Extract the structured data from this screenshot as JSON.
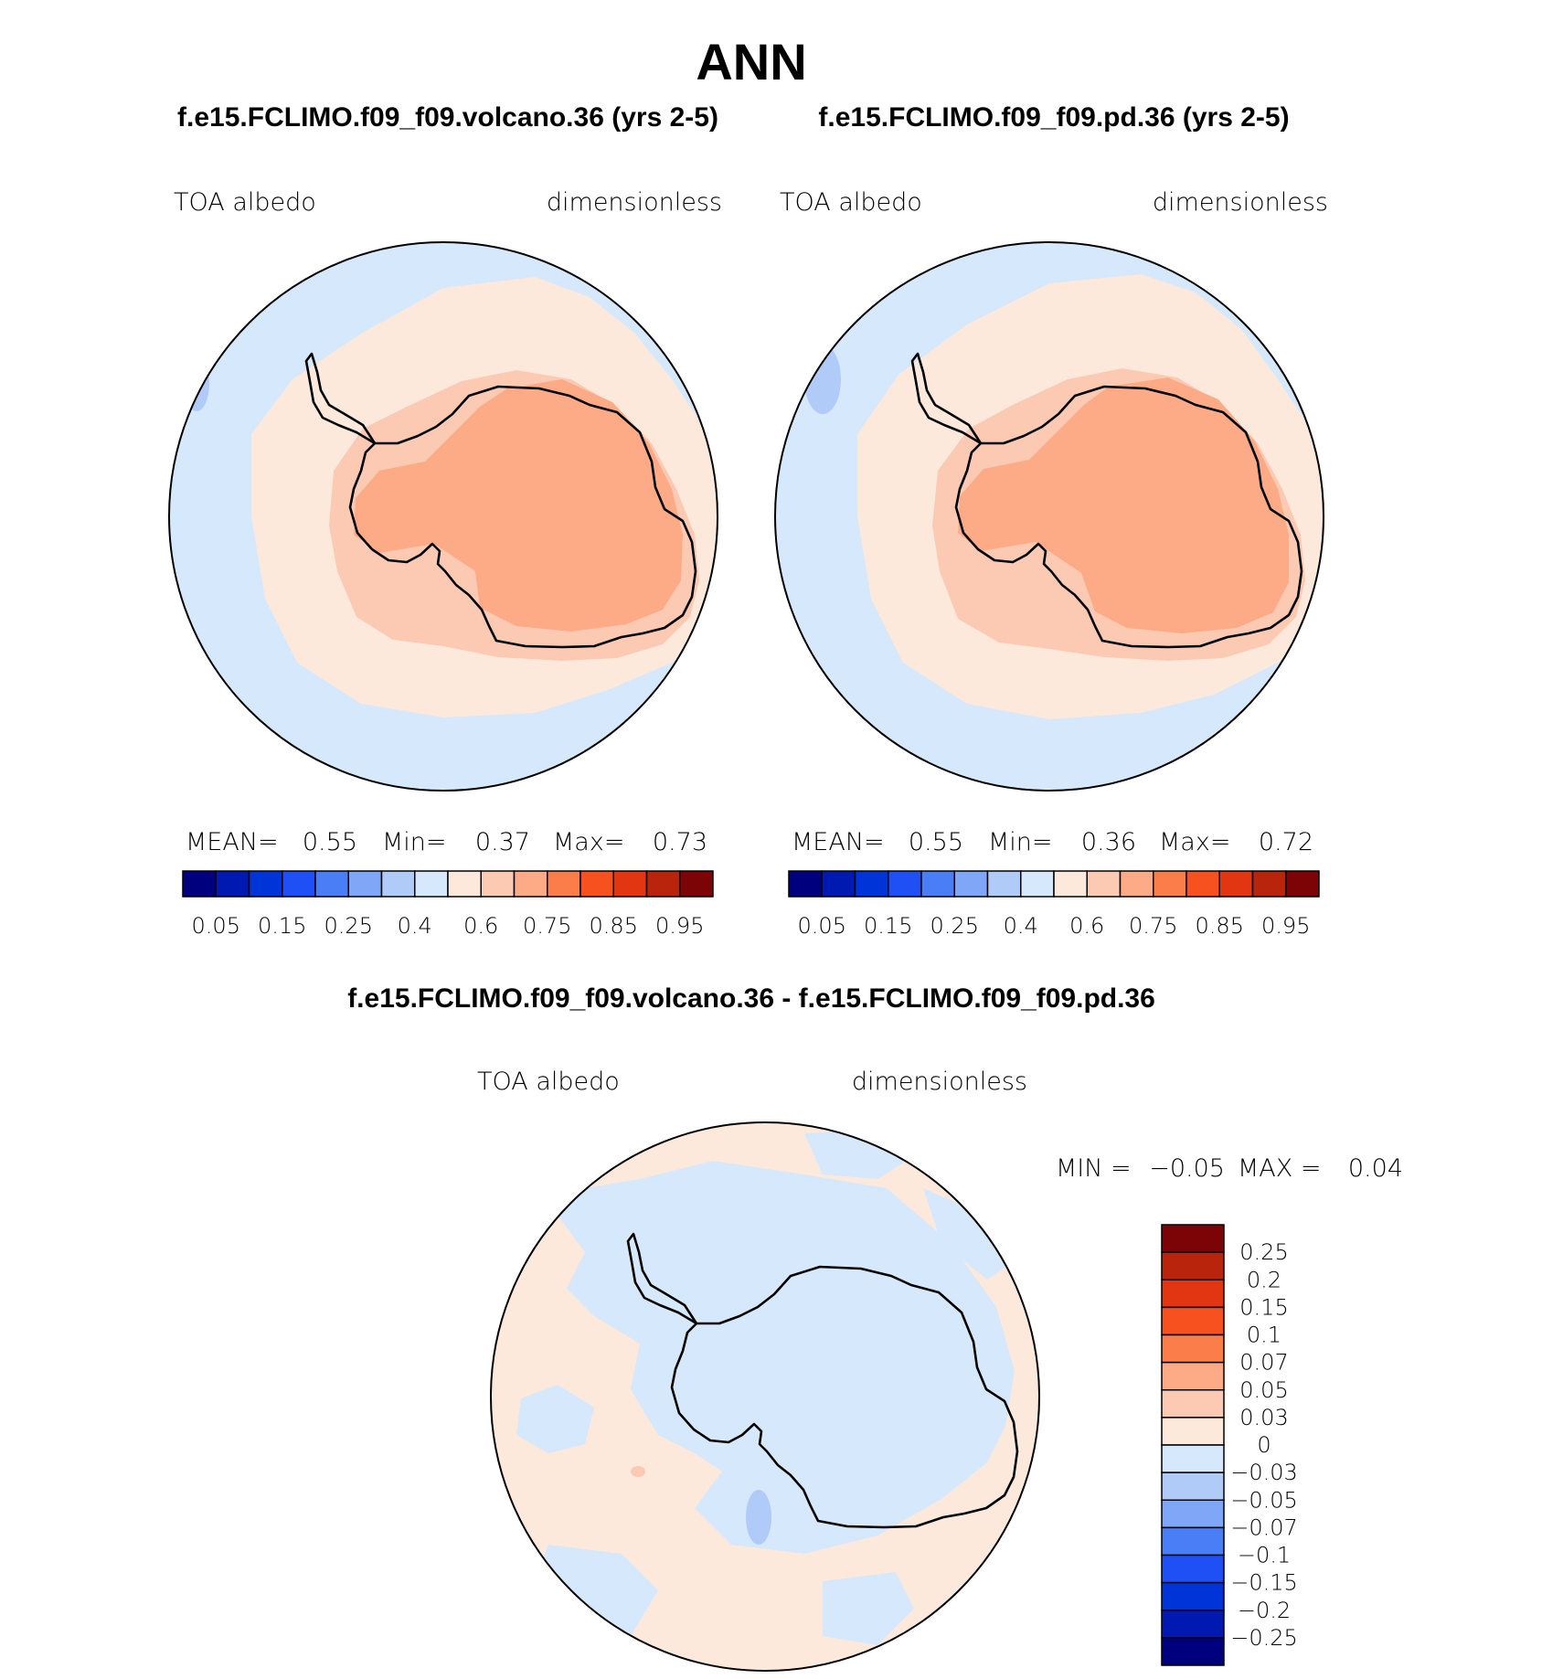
{
  "title": "ANN",
  "colors": {
    "ocean": "#d6e8fb",
    "seaice": "#fde9dc",
    "ice_mid": "#fcc9b3",
    "ice_high": "#fcab86",
    "diff_pos": "#fde9dc",
    "diff_neg": "#d6e8fb"
  },
  "panels": [
    {
      "subtitle": "f.e15.FCLIMO.f09_f09.volcano.36 (yrs 2-5)",
      "field": "TOA albedo",
      "units": "dimensionless",
      "stats": {
        "mean_label": "MEAN=",
        "mean": "0.55",
        "min_label": "Min=",
        "min": "0.37",
        "max_label": "Max=",
        "max": "0.73"
      }
    },
    {
      "subtitle": "f.e15.FCLIMO.f09_f09.pd.36 (yrs 2-5)",
      "field": "TOA albedo",
      "units": "dimensionless",
      "stats": {
        "mean_label": "MEAN=",
        "mean": "0.55",
        "min_label": "Min=",
        "min": "0.36",
        "max_label": "Max=",
        "max": "0.72"
      }
    }
  ],
  "diff_panel": {
    "subtitle": "f.e15.FCLIMO.f09_f09.volcano.36 - f.e15.FCLIMO.f09_f09.pd.36",
    "field": "TOA albedo",
    "units": "dimensionless",
    "minmax": {
      "min_label": "MIN =",
      "min": "−0.05",
      "max_label": "MAX =",
      "max": "0.04"
    }
  },
  "chart_data": [
    {
      "type": "heatmap",
      "projection": "south polar stereographic",
      "title": "f.e15.FCLIMO.f09_f09.volcano.36 (yrs 2-5)",
      "variable": "TOA albedo",
      "units": "dimensionless",
      "mean": 0.55,
      "min": 0.37,
      "max": 0.73,
      "colorbar": {
        "colors": [
          "#00007f",
          "#0019b0",
          "#0034d8",
          "#1e50f5",
          "#4a7ef6",
          "#7fa6f7",
          "#b1cbf9",
          "#d6e8fb",
          "#fde9dc",
          "#fcc9b3",
          "#fcab86",
          "#fb7d4a",
          "#f6511f",
          "#e23511",
          "#b9240c",
          "#7d0406"
        ],
        "tick_labels": [
          "0.05",
          "0.15",
          "0.25",
          "0.4",
          "0.6",
          "0.75",
          "0.85",
          "0.95"
        ]
      }
    },
    {
      "type": "heatmap",
      "projection": "south polar stereographic",
      "title": "f.e15.FCLIMO.f09_f09.pd.36 (yrs 2-5)",
      "variable": "TOA albedo",
      "units": "dimensionless",
      "mean": 0.55,
      "min": 0.36,
      "max": 0.72,
      "colorbar": {
        "colors": [
          "#00007f",
          "#0019b0",
          "#0034d8",
          "#1e50f5",
          "#4a7ef6",
          "#7fa6f7",
          "#b1cbf9",
          "#d6e8fb",
          "#fde9dc",
          "#fcc9b3",
          "#fcab86",
          "#fb7d4a",
          "#f6511f",
          "#e23511",
          "#b9240c",
          "#7d0406"
        ],
        "tick_labels": [
          "0.05",
          "0.15",
          "0.25",
          "0.4",
          "0.6",
          "0.75",
          "0.85",
          "0.95"
        ]
      }
    },
    {
      "type": "heatmap",
      "projection": "south polar stereographic",
      "title": "f.e15.FCLIMO.f09_f09.volcano.36 - f.e15.FCLIMO.f09_f09.pd.36",
      "variable": "TOA albedo",
      "units": "dimensionless",
      "min": -0.05,
      "max": 0.04,
      "colorbar": {
        "orientation": "vertical",
        "colors_top_to_bottom": [
          "#7d0406",
          "#b9240c",
          "#e23511",
          "#f6511f",
          "#fb7d4a",
          "#fcab86",
          "#fcc9b3",
          "#fde9dc",
          "#d6e8fb",
          "#b1cbf9",
          "#7fa6f7",
          "#4a7ef6",
          "#1e50f5",
          "#0034d8",
          "#0019b0",
          "#00007f"
        ],
        "tick_labels": [
          "0.25",
          "0.2",
          "0.15",
          "0.1",
          "0.07",
          "0.05",
          "0.03",
          "0",
          "−0.03",
          "−0.05",
          "−0.07",
          "−0.1",
          "−0.15",
          "−0.2",
          "−0.25"
        ]
      }
    }
  ]
}
